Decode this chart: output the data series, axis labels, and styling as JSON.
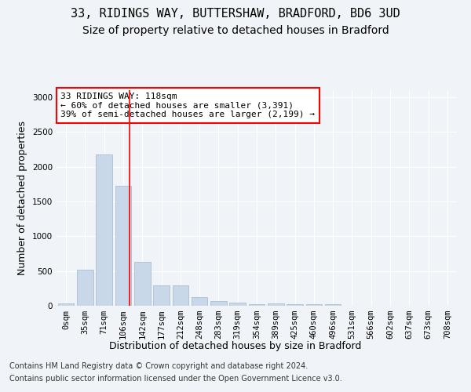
{
  "title_line1": "33, RIDINGS WAY, BUTTERSHAW, BRADFORD, BD6 3UD",
  "title_line2": "Size of property relative to detached houses in Bradford",
  "xlabel": "Distribution of detached houses by size in Bradford",
  "ylabel": "Number of detached properties",
  "bar_labels": [
    "0sqm",
    "35sqm",
    "71sqm",
    "106sqm",
    "142sqm",
    "177sqm",
    "212sqm",
    "248sqm",
    "283sqm",
    "319sqm",
    "354sqm",
    "389sqm",
    "425sqm",
    "460sqm",
    "496sqm",
    "531sqm",
    "566sqm",
    "602sqm",
    "637sqm",
    "673sqm",
    "708sqm"
  ],
  "bar_values": [
    30,
    520,
    2180,
    1720,
    635,
    290,
    290,
    120,
    70,
    40,
    25,
    30,
    25,
    25,
    20,
    0,
    0,
    0,
    0,
    0,
    0
  ],
  "bar_color": "#c8d8e8",
  "bar_edge_color": "#a0b8cc",
  "ylim": [
    0,
    3100
  ],
  "yticks": [
    0,
    500,
    1000,
    1500,
    2000,
    2500,
    3000
  ],
  "property_label": "33 RIDINGS WAY: 118sqm",
  "annotation_line1": "← 60% of detached houses are smaller (3,391)",
  "annotation_line2": "39% of semi-detached houses are larger (2,199) →",
  "vline_x_index": 3.34,
  "footer_line1": "Contains HM Land Registry data © Crown copyright and database right 2024.",
  "footer_line2": "Contains public sector information licensed under the Open Government Licence v3.0.",
  "bg_color": "#f0f4f8",
  "plot_bg_color": "#f0f4f8",
  "grid_color": "#ffffff",
  "title_fontsize": 11,
  "subtitle_fontsize": 10,
  "ylabel_fontsize": 9,
  "xlabel_fontsize": 9,
  "tick_fontsize": 7.5,
  "annotation_fontsize": 8,
  "footer_fontsize": 7
}
